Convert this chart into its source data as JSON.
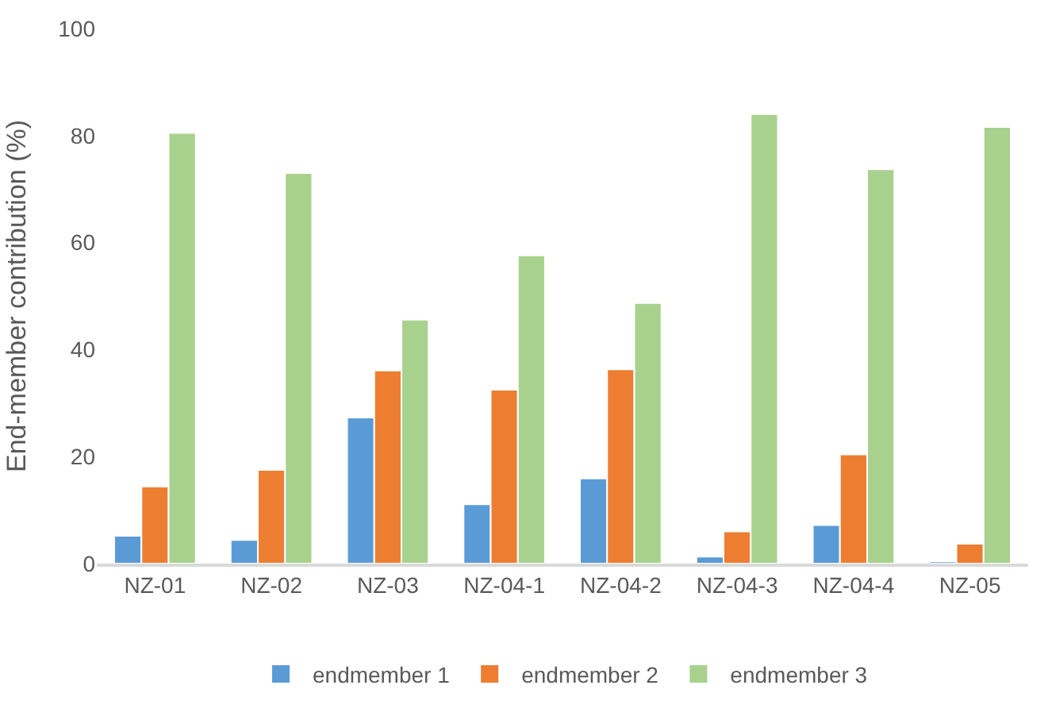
{
  "chart_data": {
    "type": "bar",
    "ylabel": "End-member contribution (%)",
    "categories": [
      "NZ-01",
      "NZ-02",
      "NZ-03",
      "NZ-04-1",
      "NZ-04-2",
      "NZ-04-3",
      "NZ-04-4",
      "NZ-05"
    ],
    "series": [
      {
        "name": "endmember 1",
        "color": "#5b9bd5",
        "values": [
          5.2,
          4.4,
          27.3,
          11.1,
          15.9,
          1.3,
          7.2,
          0.4
        ]
      },
      {
        "name": "endmember 2",
        "color": "#ed7d31",
        "values": [
          14.4,
          17.5,
          36.1,
          32.5,
          36.3,
          6.0,
          20.4,
          3.7
        ]
      },
      {
        "name": "endmember 3",
        "color": "#a9d18e",
        "values": [
          80.5,
          73.0,
          45.6,
          57.6,
          48.7,
          84.0,
          73.7,
          81.6
        ]
      }
    ],
    "ylim": [
      0,
      100
    ],
    "yticks": [
      0,
      20,
      40,
      60,
      80,
      100
    ],
    "grid": false,
    "legend": "bottom"
  }
}
